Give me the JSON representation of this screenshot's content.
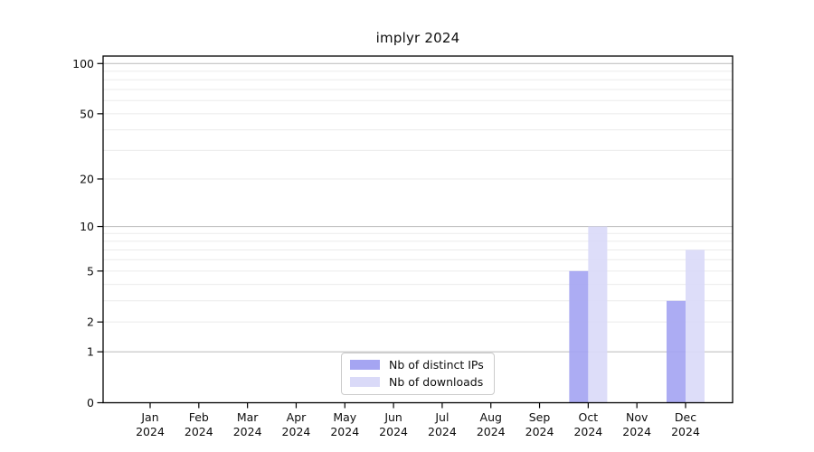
{
  "chart_data": {
    "type": "bar",
    "title": "implyr 2024",
    "categories": [
      "Jan",
      "Feb",
      "Mar",
      "Apr",
      "May",
      "Jun",
      "Jul",
      "Aug",
      "Sep",
      "Oct",
      "Nov",
      "Dec"
    ],
    "category_year": "2024",
    "series": [
      {
        "name": "Nb of distinct IPs",
        "color": "#a5a5f2",
        "values": [
          0,
          0,
          0,
          0,
          0,
          0,
          0,
          0,
          0,
          5,
          0,
          3
        ]
      },
      {
        "name": "Nb of downloads",
        "color": "#dadaf8",
        "values": [
          0,
          0,
          0,
          0,
          0,
          0,
          0,
          0,
          0,
          10,
          0,
          7
        ]
      }
    ],
    "y_axis": {
      "scale": "log1p",
      "tick_labels": [
        "0",
        "1",
        "2",
        "5",
        "10",
        "20",
        "50",
        "100"
      ],
      "ticks": [
        0,
        1,
        2,
        5,
        10,
        20,
        50,
        100
      ],
      "major_gridlines": [
        1,
        10,
        100
      ],
      "minor_gridlines": [
        2,
        3,
        4,
        5,
        6,
        7,
        8,
        9,
        20,
        30,
        40,
        50,
        60,
        70,
        80,
        90
      ],
      "range": [
        0,
        111
      ]
    },
    "x_axis": {
      "tick_count": 12
    },
    "legend": {
      "position": "lower center"
    },
    "grid": true
  },
  "colors": {
    "background": "#ffffff",
    "spine": "#000000",
    "tick": "#000000",
    "text": "#0d0d0d",
    "major_grid": "#c2c2c2",
    "minor_grid": "#ebebeb",
    "legend_border": "#cbcbcb"
  }
}
